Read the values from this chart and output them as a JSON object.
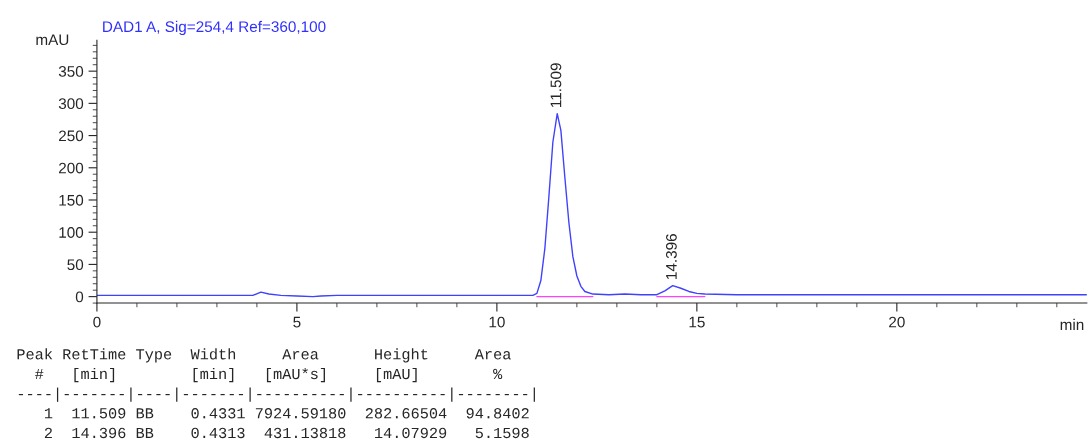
{
  "chart_data": {
    "type": "line",
    "title": "DAD1 A, Sig=254,4 Ref=360,100",
    "xlabel": "min",
    "ylabel": "mAU",
    "series": [
      {
        "color": "#4040ff",
        "x": [
          0,
          0.5,
          1,
          2,
          3,
          3.9,
          4.1,
          4.3,
          4.6,
          5,
          5.4,
          5.6,
          6,
          7,
          8,
          9,
          10,
          10.9,
          11.0,
          11.1,
          11.2,
          11.3,
          11.4,
          11.509,
          11.6,
          11.7,
          11.8,
          11.9,
          12.0,
          12.1,
          12.2,
          12.4,
          12.8,
          13.2,
          13.6,
          14.0,
          14.2,
          14.396,
          14.6,
          14.8,
          15.0,
          15.2,
          16,
          17,
          18,
          19,
          20,
          21,
          22,
          23,
          24,
          24.75
        ],
        "values": [
          2,
          2,
          2,
          2,
          2,
          2,
          7,
          4,
          2,
          1,
          0,
          1,
          2,
          2,
          2,
          2,
          2,
          2,
          5,
          25,
          75,
          155,
          240,
          284,
          258,
          185,
          115,
          62,
          32,
          16,
          8,
          4,
          3,
          4,
          3,
          3,
          9,
          17,
          13,
          8,
          5,
          4,
          3,
          3,
          3,
          3,
          3,
          3,
          3,
          3,
          3,
          3
        ]
      },
      {
        "color": "#ff40ff",
        "x": [
          11.0,
          12.4,
          12.41,
          14.0,
          15.2
        ],
        "values": [
          0,
          0,
          null,
          0,
          0
        ]
      }
    ],
    "xlim": [
      0,
      24.75
    ],
    "xticks": [
      0,
      5,
      10,
      15,
      20
    ],
    "ylim": [
      -10,
      398
    ],
    "yticks": [
      0,
      50,
      100,
      150,
      200,
      250,
      300,
      350
    ],
    "grid": false,
    "legend": false,
    "annotations": [
      {
        "text": "11.509",
        "x": 11.509,
        "y": 284
      },
      {
        "text": "14.396",
        "x": 14.396,
        "y": 17
      },
      "Peak RetTime Type  Width     Area      Height     Area  ",
      "  #   [min]        [min]   [mAU*s]     [mAU]        %   ",
      "----|-------|----|-------|----------|----------|--------|",
      "   1  11.509 BB    0.4331 7924.59180  282.66504  94.8402",
      "   2  14.396 BB    0.4313  431.13818   14.07929   5.1598"
    ]
  }
}
